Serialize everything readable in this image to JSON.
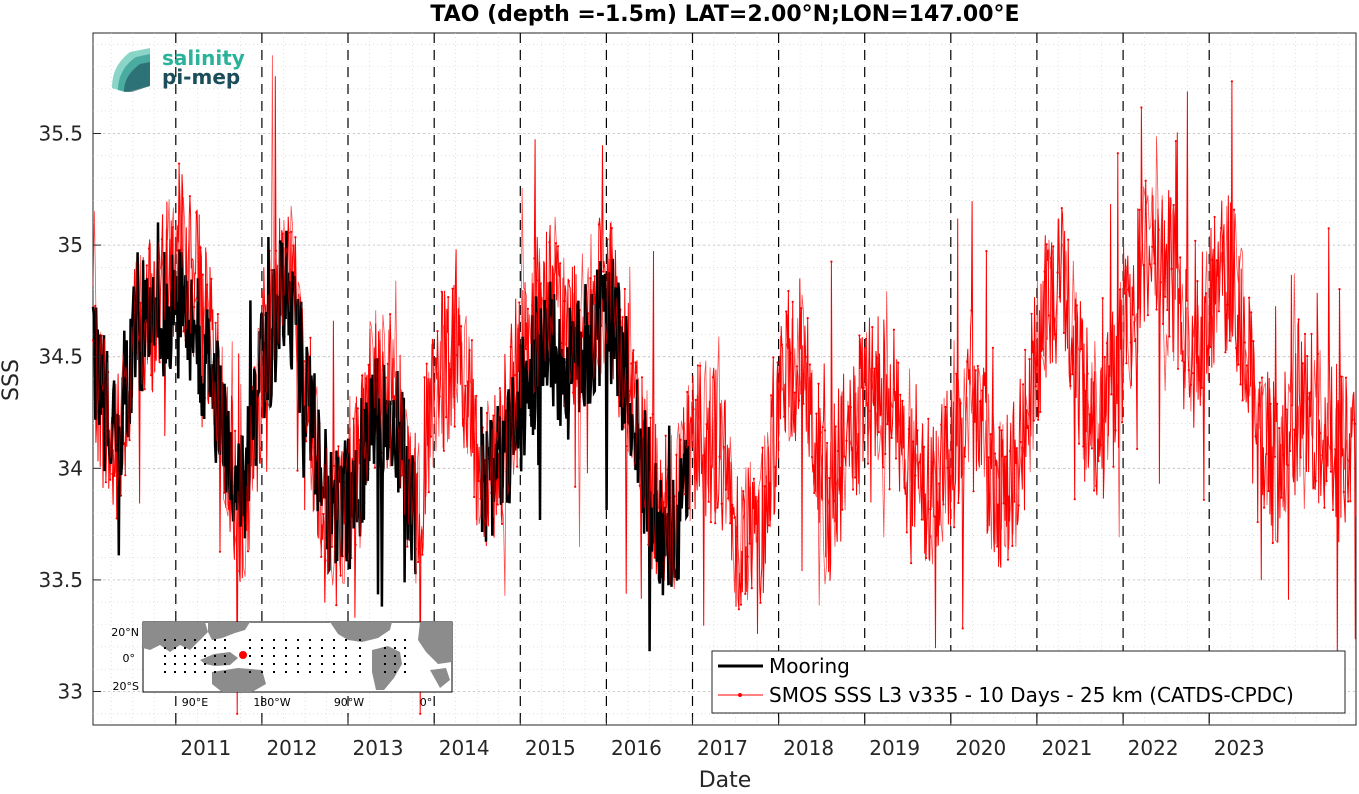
{
  "chart_data": {
    "type": "line",
    "title": "TAO (depth =-1.5m) LAT=2.00°N;LON=147.00°E",
    "xlabel": "Date",
    "ylabel": "SSS",
    "xlim": [
      "2010-01-15",
      "2024-09-15"
    ],
    "ylim": [
      32.85,
      35.95
    ],
    "x_tick_labels": [
      "2011",
      "2012",
      "2013",
      "2014",
      "2015",
      "2016",
      "2017",
      "2018",
      "2019",
      "2020",
      "2021",
      "2022",
      "2023"
    ],
    "y_tick_labels": [
      "33",
      "33.5",
      "34",
      "34.5",
      "35",
      "35.5"
    ],
    "grid": true,
    "year_boundaries_dashed": true,
    "legend_position": "bottom-right",
    "series": [
      {
        "name": "Mooring",
        "color": "#000000",
        "style": "thick line",
        "x": [
          "2010-01",
          "2010-04",
          "2010-07",
          "2010-10",
          "2011-01",
          "2011-04",
          "2011-07",
          "2011-10",
          "2012-01",
          "2012-04",
          "2012-07",
          "2012-10",
          "2013-01",
          "2013-04",
          "2013-07",
          "2013-10",
          "2014-01",
          "2014-04",
          "2014-07",
          "2014-10",
          "2015-01",
          "2015-04",
          "2015-07",
          "2015-10",
          "2016-01",
          "2016-04",
          "2016-07",
          "2016-10",
          "2016-12"
        ],
        "y": [
          34.5,
          34.1,
          34.6,
          34.7,
          34.7,
          34.55,
          34.2,
          33.9,
          34.5,
          34.8,
          34.3,
          33.8,
          33.85,
          34.2,
          34.3,
          33.7,
          null,
          null,
          33.9,
          34.0,
          34.3,
          34.6,
          34.4,
          34.55,
          34.7,
          34.3,
          33.8,
          33.65,
          33.9
        ]
      },
      {
        "name": "SMOS SSS L3 v335 - 10 Days - 25 km (CATDS-CPDC)",
        "color": "#ff0000",
        "style": "thin line with dots",
        "x": [
          "2010-01",
          "2010-04",
          "2010-07",
          "2010-10",
          "2011-01",
          "2011-04",
          "2011-07",
          "2011-10",
          "2012-01",
          "2012-04",
          "2012-07",
          "2012-10",
          "2013-01",
          "2013-04",
          "2013-07",
          "2013-10",
          "2014-01",
          "2014-04",
          "2014-07",
          "2014-10",
          "2015-01",
          "2015-04",
          "2015-07",
          "2015-10",
          "2016-01",
          "2016-04",
          "2016-07",
          "2016-10",
          "2017-01",
          "2017-04",
          "2017-07",
          "2017-10",
          "2018-01",
          "2018-04",
          "2018-07",
          "2018-10",
          "2019-01",
          "2019-04",
          "2019-07",
          "2019-10",
          "2020-01",
          "2020-04",
          "2020-07",
          "2020-10",
          "2021-01",
          "2021-04",
          "2021-07",
          "2021-10",
          "2022-01",
          "2022-04",
          "2022-07",
          "2022-10",
          "2023-01",
          "2023-04",
          "2023-07",
          "2023-10",
          "2024-01",
          "2024-04",
          "2024-07",
          "2024-09"
        ],
        "y": [
          34.5,
          34.0,
          34.6,
          34.7,
          35.0,
          34.8,
          34.2,
          33.7,
          34.6,
          35.0,
          34.3,
          33.7,
          33.9,
          34.4,
          34.3,
          33.8,
          34.4,
          34.5,
          34.0,
          34.1,
          34.5,
          34.8,
          34.6,
          34.7,
          34.8,
          34.3,
          33.9,
          33.8,
          34.2,
          34.1,
          33.7,
          33.7,
          34.4,
          34.5,
          33.8,
          34.1,
          34.3,
          34.4,
          33.9,
          33.9,
          34.1,
          34.2,
          33.9,
          34.0,
          34.6,
          34.9,
          34.3,
          34.2,
          34.6,
          35.0,
          34.9,
          34.5,
          34.8,
          34.9,
          34.2,
          34.0,
          34.3,
          34.2,
          34.1,
          34.0
        ]
      }
    ]
  },
  "logo": {
    "line1": "salinity",
    "line2": "pi-mep",
    "color1": "#2bb39a",
    "color2": "#1b4d5a"
  },
  "inset_map": {
    "lat_labels": [
      "20°N",
      "0°",
      "20°S"
    ],
    "lon_labels": [
      "90°E",
      "180°W",
      "90°W",
      "0°"
    ],
    "marker_color": "#ff0000",
    "land_color": "#8c8c8c",
    "ocean_color": "#ffffff"
  },
  "legend": {
    "entries": [
      "Mooring",
      "SMOS SSS L3 v335 - 10 Days - 25 km (CATDS-CPDC)"
    ]
  }
}
